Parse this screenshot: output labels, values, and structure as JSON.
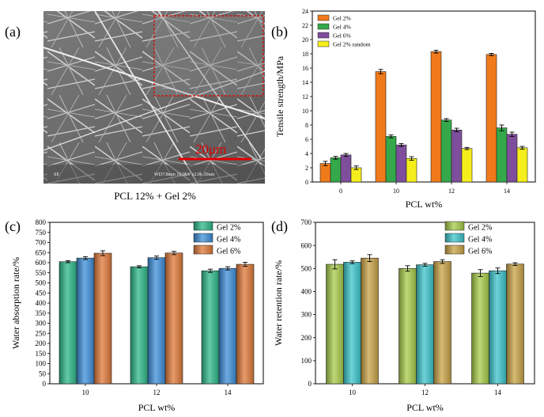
{
  "panel_labels": {
    "a": "(a)",
    "b": "(b)",
    "c": "(c)",
    "d": "(d)"
  },
  "sem": {
    "scale_bar_label": "20μm",
    "caption": "PCL 12% + Gel 2%",
    "footer_left": "SE",
    "footer_right": "WD7.8mm 10.0kV x2.0k 20um",
    "inset_label": "........"
  },
  "chart_data": [
    {
      "id": "b",
      "type": "bar",
      "categories": [
        "0",
        "10",
        "12",
        "14"
      ],
      "xlabel": "PCL wt%",
      "ylabel": "Tensile strength/MPa",
      "ylim": [
        0,
        24
      ],
      "yticks": [
        "0",
        "2",
        "4",
        "6",
        "8",
        "10",
        "12",
        "14",
        "16",
        "18",
        "20",
        "22",
        "24"
      ],
      "legend_position": "top-left",
      "series": [
        {
          "name": "Gel 2%",
          "color": "#f07a1a",
          "values": [
            2.6,
            15.5,
            18.3,
            17.9
          ],
          "errors": [
            0.3,
            0.3,
            0.2,
            0.15
          ]
        },
        {
          "name": "Gel 4%",
          "color": "#34a84a",
          "values": [
            3.4,
            6.4,
            8.7,
            7.6
          ],
          "errors": [
            0.2,
            0.2,
            0.2,
            0.4
          ]
        },
        {
          "name": "Gel 6%",
          "color": "#7e4e9c",
          "values": [
            3.8,
            5.2,
            7.3,
            6.7
          ],
          "errors": [
            0.2,
            0.2,
            0.25,
            0.3
          ]
        },
        {
          "name": "Gel 2% random",
          "color": "#f5ee1c",
          "values": [
            2.0,
            3.3,
            4.7,
            4.8
          ],
          "errors": [
            0.25,
            0.25,
            0.15,
            0.2
          ]
        }
      ]
    },
    {
      "id": "c",
      "type": "bar",
      "categories": [
        "10",
        "12",
        "14"
      ],
      "xlabel": "PCL wt%",
      "ylabel": "Water absorption rate/%",
      "ylim": [
        0,
        800
      ],
      "yticks": [
        "0",
        "50",
        "100",
        "150",
        "200",
        "250",
        "300",
        "350",
        "400",
        "450",
        "500",
        "550",
        "600",
        "650",
        "700",
        "750",
        "800"
      ],
      "legend_position": "top-right",
      "series": [
        {
          "name": "Gel 2%",
          "color": "#2db88a",
          "values": [
            605,
            580,
            560
          ],
          "errors": [
            5,
            5,
            8
          ]
        },
        {
          "name": "Gel 4%",
          "color": "#3e8fd9",
          "values": [
            623,
            625,
            572
          ],
          "errors": [
            7,
            8,
            8
          ]
        },
        {
          "name": "Gel 6%",
          "color": "#e07a3a",
          "values": [
            647,
            648,
            592
          ],
          "errors": [
            12,
            8,
            10
          ]
        }
      ]
    },
    {
      "id": "d",
      "type": "bar",
      "categories": [
        "10",
        "12",
        "14"
      ],
      "xlabel": "PCL wt%",
      "ylabel": "Water retention rate/%",
      "ylim": [
        0,
        700
      ],
      "yticks": [
        "0",
        "100",
        "200",
        "300",
        "400",
        "500",
        "600",
        "700"
      ],
      "legend_position": "top-right",
      "series": [
        {
          "name": "Gel 2%",
          "color": "#a8cc4a",
          "values": [
            518,
            500,
            480
          ],
          "errors": [
            20,
            12,
            15
          ]
        },
        {
          "name": "Gel 4%",
          "color": "#3cc6cc",
          "values": [
            527,
            516,
            490
          ],
          "errors": [
            6,
            6,
            12
          ]
        },
        {
          "name": "Gel 6%",
          "color": "#c9a446",
          "values": [
            545,
            530,
            519
          ],
          "errors": [
            15,
            8,
            6
          ]
        }
      ]
    }
  ]
}
